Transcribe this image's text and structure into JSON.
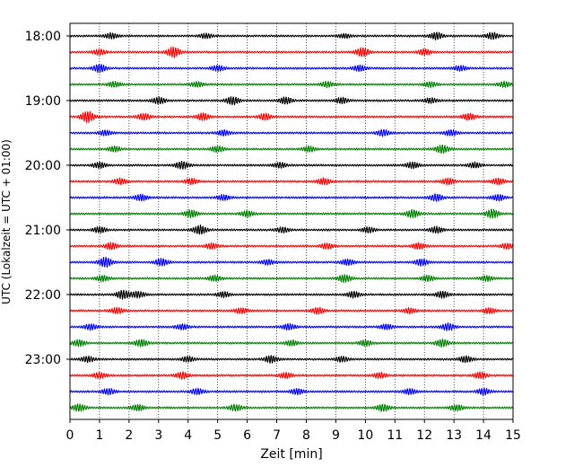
{
  "chart_data": {
    "type": "line",
    "title": "",
    "xlabel": "Zeit  [min]",
    "ylabel": "UTC (Lokalzeit = UTC + 01:00)",
    "xlim": [
      0,
      15
    ],
    "x_ticks": [
      0,
      1,
      2,
      3,
      4,
      5,
      6,
      7,
      8,
      9,
      10,
      11,
      12,
      13,
      14,
      15
    ],
    "x_tick_labels": [
      "0",
      "1",
      "2",
      "3",
      "4",
      "5",
      "6",
      "7",
      "8",
      "9",
      "10",
      "11",
      "12",
      "13",
      "14",
      "15"
    ],
    "y_tick_labels": [
      "18:00",
      "19:00",
      "20:00",
      "21:00",
      "22:00",
      "23:00"
    ],
    "trace_interval_minutes": 15,
    "start_time": "18:00",
    "end_time": "23:45",
    "trace_count": 24,
    "vertical_grid": true,
    "grid_style": "dotted",
    "legend": "none",
    "series_colors": [
      "#000000",
      "#ff0000",
      "#0000ff",
      "#008000"
    ],
    "trace_bursts": [
      [
        [
          1.4,
          1.2
        ],
        [
          4.6,
          1.0
        ],
        [
          9.3,
          0.9
        ],
        [
          12.4,
          1.6
        ],
        [
          14.3,
          1.5
        ]
      ],
      [
        [
          3.5,
          2.3
        ],
        [
          9.9,
          2.0
        ],
        [
          1.0,
          1.2
        ],
        [
          12.0,
          1.3
        ]
      ],
      [
        [
          1.0,
          1.8
        ],
        [
          5.0,
          1.2
        ],
        [
          9.8,
          1.3
        ],
        [
          13.2,
          1.1
        ]
      ],
      [
        [
          1.5,
          1.2
        ],
        [
          4.3,
          1.1
        ],
        [
          8.7,
          1.2
        ],
        [
          12.2,
          1.2
        ],
        [
          14.7,
          1.2
        ]
      ],
      [
        [
          3.0,
          1.5
        ],
        [
          5.5,
          1.8
        ],
        [
          7.3,
          1.5
        ],
        [
          9.2,
          1.3
        ],
        [
          12.2,
          1.1
        ]
      ],
      [
        [
          0.6,
          2.6
        ],
        [
          2.5,
          1.4
        ],
        [
          4.5,
          1.6
        ],
        [
          6.6,
          1.4
        ],
        [
          13.5,
          1.4
        ]
      ],
      [
        [
          1.2,
          1.1
        ],
        [
          5.2,
          1.2
        ],
        [
          10.6,
          1.4
        ],
        [
          12.9,
          1.3
        ]
      ],
      [
        [
          1.5,
          1.2
        ],
        [
          5.0,
          1.3
        ],
        [
          8.1,
          1.2
        ],
        [
          12.6,
          1.9
        ]
      ],
      [
        [
          1.0,
          1.3
        ],
        [
          3.8,
          1.7
        ],
        [
          7.1,
          1.2
        ],
        [
          11.6,
          1.4
        ],
        [
          13.7,
          1.2
        ]
      ],
      [
        [
          1.7,
          1.3
        ],
        [
          4.1,
          1.3
        ],
        [
          8.6,
          1.4
        ],
        [
          12.8,
          1.4
        ],
        [
          14.5,
          1.4
        ]
      ],
      [
        [
          2.4,
          1.4
        ],
        [
          5.2,
          1.2
        ],
        [
          12.4,
          1.6
        ],
        [
          14.5,
          1.4
        ]
      ],
      [
        [
          4.1,
          1.7
        ],
        [
          6.0,
          1.3
        ],
        [
          11.6,
          1.8
        ],
        [
          14.3,
          2.0
        ]
      ],
      [
        [
          1.0,
          1.3
        ],
        [
          4.4,
          2.0
        ],
        [
          7.2,
          1.2
        ],
        [
          10.1,
          1.2
        ],
        [
          12.4,
          1.4
        ]
      ],
      [
        [
          1.4,
          1.5
        ],
        [
          4.8,
          1.3
        ],
        [
          8.7,
          1.2
        ],
        [
          11.8,
          1.3
        ],
        [
          14.8,
          1.2
        ]
      ],
      [
        [
          1.2,
          2.3
        ],
        [
          3.1,
          1.6
        ],
        [
          6.7,
          1.1
        ],
        [
          9.4,
          1.3
        ],
        [
          11.9,
          1.5
        ]
      ],
      [
        [
          1.1,
          1.3
        ],
        [
          4.9,
          1.3
        ],
        [
          9.3,
          1.7
        ],
        [
          12.1,
          1.3
        ],
        [
          14.1,
          1.2
        ]
      ],
      [
        [
          1.8,
          2.0
        ],
        [
          2.3,
          1.4
        ],
        [
          5.2,
          1.2
        ],
        [
          9.6,
          1.4
        ],
        [
          12.6,
          1.5
        ]
      ],
      [
        [
          1.6,
          1.3
        ],
        [
          5.8,
          1.2
        ],
        [
          8.4,
          1.4
        ],
        [
          11.5,
          1.2
        ],
        [
          14.2,
          1.2
        ]
      ],
      [
        [
          0.7,
          1.3
        ],
        [
          3.8,
          1.2
        ],
        [
          7.4,
          1.3
        ],
        [
          10.7,
          1.2
        ],
        [
          12.8,
          1.6
        ]
      ],
      [
        [
          0.3,
          1.4
        ],
        [
          2.4,
          1.6
        ],
        [
          7.5,
          1.2
        ],
        [
          10.0,
          1.3
        ],
        [
          12.6,
          1.7
        ]
      ],
      [
        [
          0.6,
          1.3
        ],
        [
          4.0,
          1.2
        ],
        [
          6.8,
          1.6
        ],
        [
          9.2,
          1.2
        ],
        [
          13.4,
          1.4
        ]
      ],
      [
        [
          1.0,
          1.3
        ],
        [
          3.8,
          1.5
        ],
        [
          7.3,
          1.2
        ],
        [
          10.5,
          1.2
        ],
        [
          13.9,
          1.4
        ]
      ],
      [
        [
          1.3,
          1.3
        ],
        [
          4.3,
          1.3
        ],
        [
          7.7,
          1.3
        ],
        [
          11.5,
          1.2
        ],
        [
          14.0,
          1.4
        ]
      ],
      [
        [
          0.3,
          1.6
        ],
        [
          2.3,
          1.3
        ],
        [
          5.6,
          1.4
        ],
        [
          10.6,
          1.6
        ],
        [
          13.1,
          1.3
        ]
      ]
    ]
  }
}
